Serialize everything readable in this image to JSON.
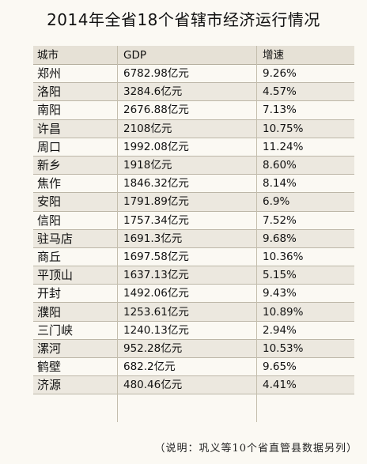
{
  "title": "2014年全省18个省辖市经济运行情况",
  "headers": {
    "city": "城市",
    "gdp": "GDP",
    "growth": "增速"
  },
  "rows": [
    {
      "city": "郑州",
      "gdp": "6782.98亿元",
      "growth": "9.26%"
    },
    {
      "city": "洛阳",
      "gdp": "3284.6亿元",
      "growth": "4.57%"
    },
    {
      "city": "南阳",
      "gdp": "2676.88亿元",
      "growth": "7.13%"
    },
    {
      "city": "许昌",
      "gdp": "2108亿元",
      "growth": "10.75%"
    },
    {
      "city": "周口",
      "gdp": "1992.08亿元",
      "growth": "11.24%"
    },
    {
      "city": "新乡",
      "gdp": "1918亿元",
      "growth": "8.60%"
    },
    {
      "city": "焦作",
      "gdp": "1846.32亿元",
      "growth": "8.14%"
    },
    {
      "city": "安阳",
      "gdp": "1791.89亿元",
      "growth": "6.9%"
    },
    {
      "city": "信阳",
      "gdp": "1757.34亿元",
      "growth": "7.52%"
    },
    {
      "city": "驻马店",
      "gdp": "1691.3亿元",
      "growth": "9.68%"
    },
    {
      "city": "商丘",
      "gdp": "1697.58亿元",
      "growth": "10.36%"
    },
    {
      "city": "平顶山",
      "gdp": "1637.13亿元",
      "growth": "5.15%"
    },
    {
      "city": "开封",
      "gdp": "1492.06亿元",
      "growth": "9.43%"
    },
    {
      "city": "濮阳",
      "gdp": "1253.61亿元",
      "growth": "10.89%"
    },
    {
      "city": "三门峡",
      "gdp": "1240.13亿元",
      "growth": "2.94%"
    },
    {
      "city": "漯河",
      "gdp": "952.28亿元",
      "growth": "10.53%"
    },
    {
      "city": "鹤壁",
      "gdp": "682.2亿元",
      "growth": "9.65%"
    },
    {
      "city": "济源",
      "gdp": "480.46亿元",
      "growth": "4.41%"
    }
  ],
  "note": "（说明：巩义等10个省直管县数据另列）"
}
